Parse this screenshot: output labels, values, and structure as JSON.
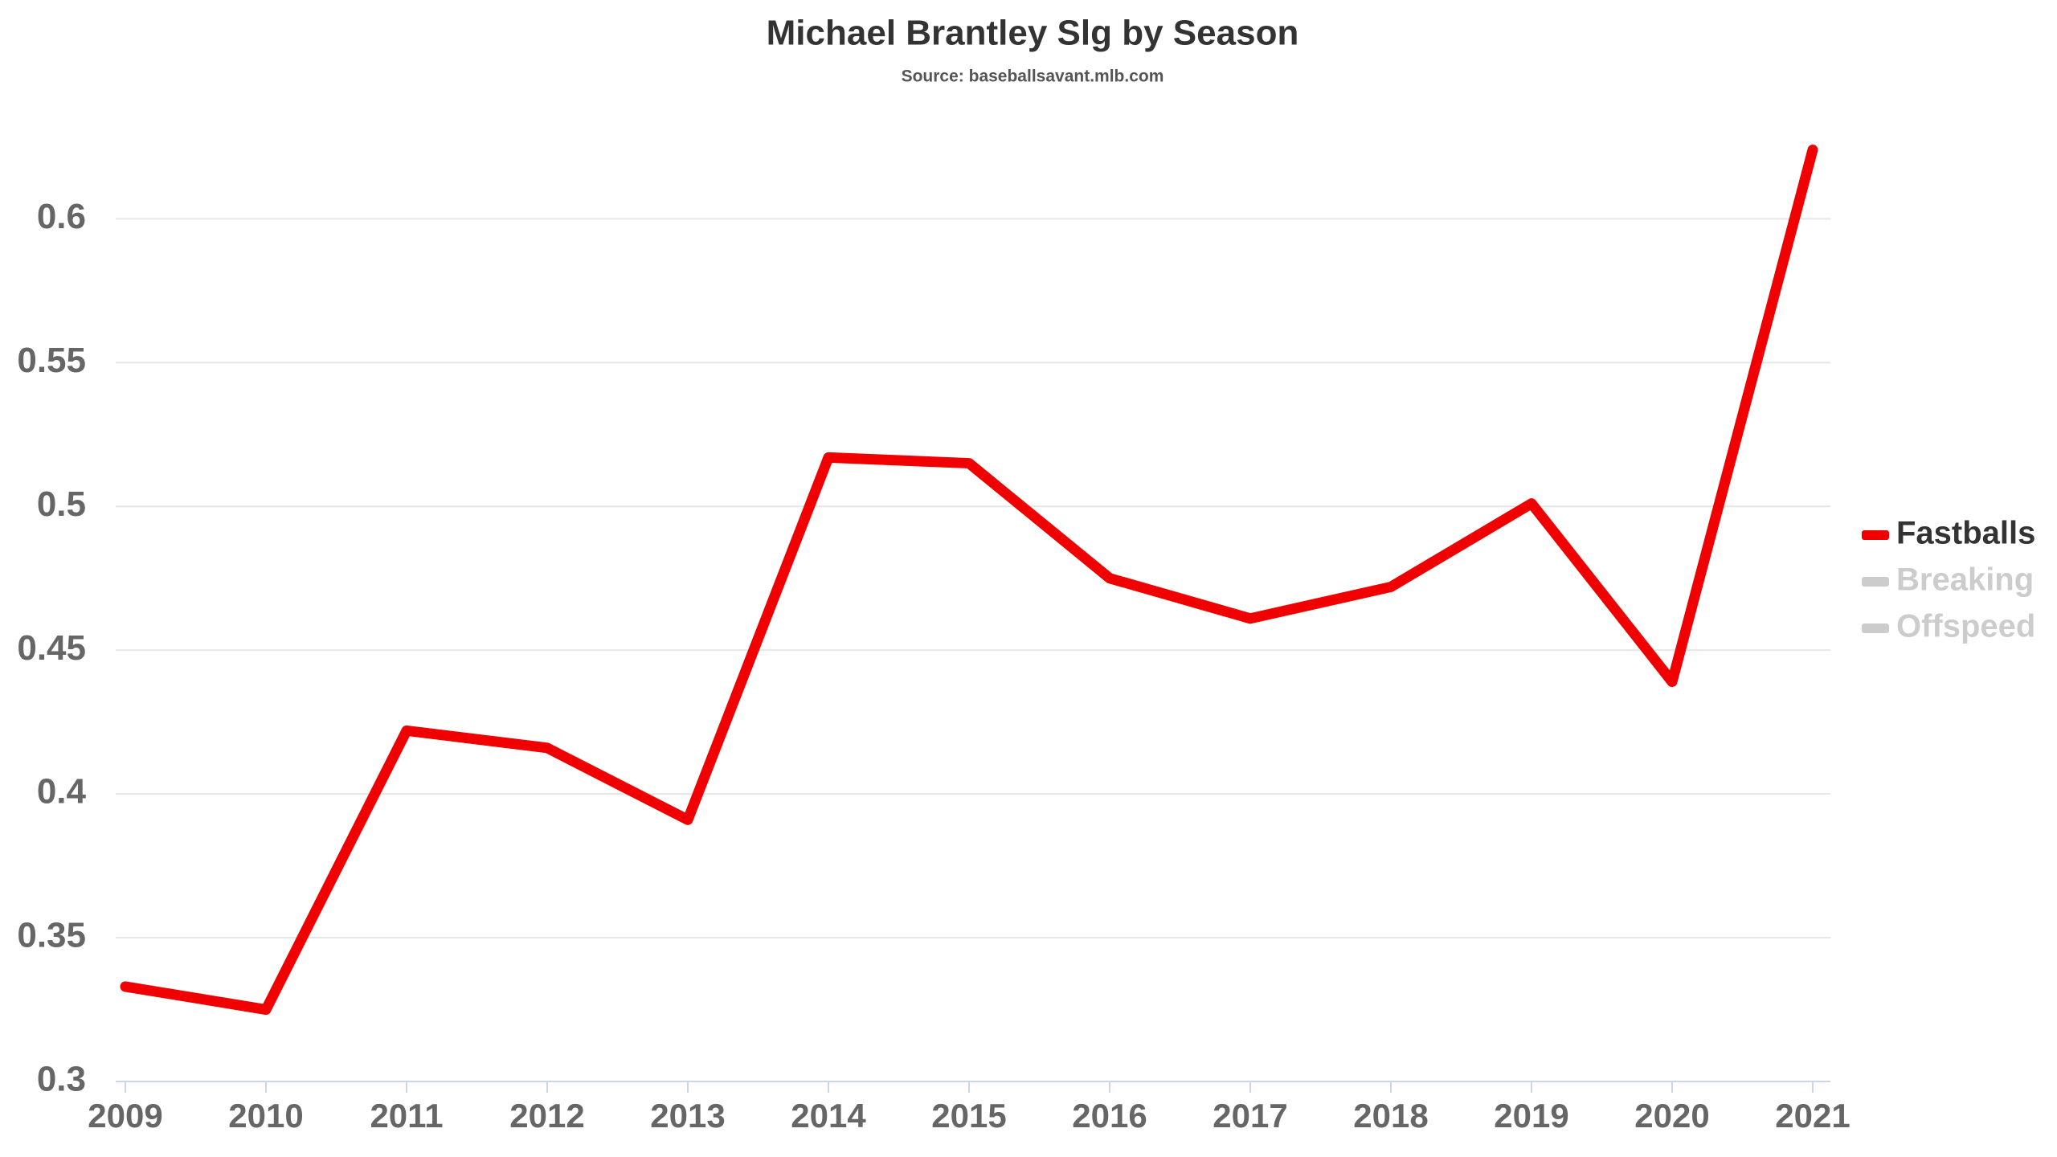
{
  "chart_data": {
    "type": "line",
    "title": "Michael Brantley Slg by Season",
    "subtitle": "Source: baseballsavant.mlb.com",
    "categories": [
      "2009",
      "2010",
      "2011",
      "2012",
      "2013",
      "2014",
      "2015",
      "2016",
      "2017",
      "2018",
      "2019",
      "2020",
      "2021"
    ],
    "series": [
      {
        "name": "Fastballs",
        "color": "#f00000",
        "values": [
          0.333,
          0.325,
          0.422,
          0.416,
          0.391,
          0.517,
          0.515,
          0.475,
          0.461,
          0.472,
          0.501,
          0.439,
          0.624
        ]
      },
      {
        "name": "Breaking",
        "color": "#cccccc",
        "visible": false
      },
      {
        "name": "Offspeed",
        "color": "#cccccc",
        "visible": false
      }
    ],
    "ylim": [
      0.3,
      0.63
    ],
    "yticks": [
      0.3,
      0.35,
      0.4,
      0.45,
      0.5,
      0.55,
      0.6
    ],
    "grid": true,
    "legend": "right"
  }
}
